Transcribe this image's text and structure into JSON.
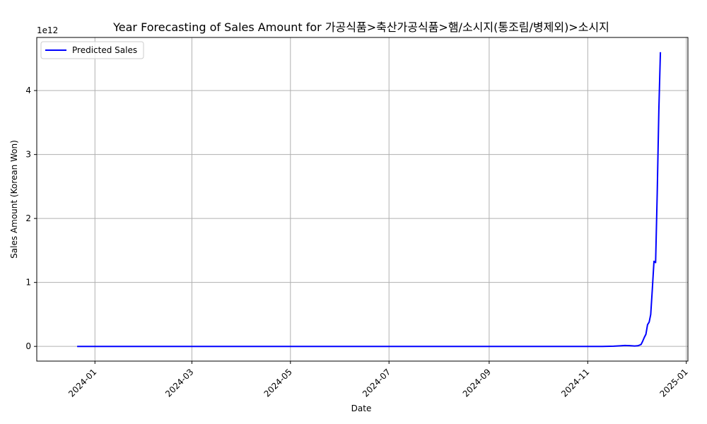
{
  "chart_data": {
    "type": "line",
    "title": "Year Forecasting of Sales Amount for 가공식품>축산가공식품>햄/소시지(통조림/병제외)>소시지",
    "xlabel": "Date",
    "ylabel": "Sales Amount (Korean Won)",
    "y_offset_label": "1e12",
    "y_scale_factor": 1000000000000.0,
    "xlim": [
      "2023-11-26",
      "2025-01-02"
    ],
    "ylim": [
      -0.23,
      4.83
    ],
    "x_ticks": [
      "2024-01-01",
      "2024-03-01",
      "2024-05-01",
      "2024-07-01",
      "2024-09-01",
      "2024-11-01",
      "2025-01-01"
    ],
    "x_tick_labels": [
      "2024-01",
      "2024-03",
      "2024-05",
      "2024-07",
      "2024-09",
      "2024-11",
      "2025-01"
    ],
    "y_ticks": [
      0,
      1,
      2,
      3,
      4
    ],
    "y_tick_labels": [
      "0",
      "1",
      "2",
      "3",
      "4"
    ],
    "grid": true,
    "legend_position": "upper-left",
    "series": [
      {
        "name": "Predicted Sales",
        "color": "#0000ff",
        "points": [
          [
            "2023-12-21",
            0.0
          ],
          [
            "2024-03-01",
            0.0
          ],
          [
            "2024-06-01",
            0.0
          ],
          [
            "2024-09-01",
            0.0
          ],
          [
            "2024-11-10",
            0.0
          ],
          [
            "2024-11-17",
            0.003
          ],
          [
            "2024-11-21",
            0.009
          ],
          [
            "2024-11-24",
            0.014
          ],
          [
            "2024-11-27",
            0.012
          ],
          [
            "2024-11-30",
            0.006
          ],
          [
            "2024-12-02",
            0.01
          ],
          [
            "2024-12-04",
            0.03
          ],
          [
            "2024-12-05",
            0.08
          ],
          [
            "2024-12-06",
            0.14
          ],
          [
            "2024-12-07",
            0.19
          ],
          [
            "2024-12-08",
            0.34
          ],
          [
            "2024-12-09",
            0.38
          ],
          [
            "2024-12-10",
            0.5
          ],
          [
            "2024-12-11",
            0.9
          ],
          [
            "2024-12-12",
            1.33
          ],
          [
            "2024-12-13",
            1.31
          ],
          [
            "2024-12-14",
            2.4
          ],
          [
            "2024-12-15",
            3.7
          ],
          [
            "2024-12-16",
            4.6
          ]
        ]
      }
    ]
  }
}
